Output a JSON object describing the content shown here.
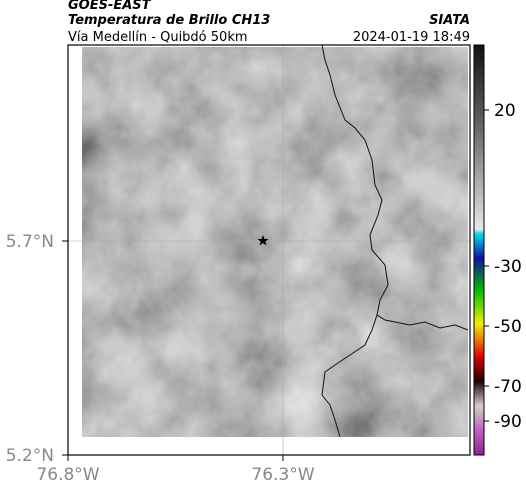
{
  "header": {
    "satellite": "GOES-EAST",
    "product": "Temperatura de Brillo CH13",
    "agency": "SIATA",
    "location": "Vía Medellín - Quibdó 50km",
    "datetime": "2024-01-19 18:49"
  },
  "map": {
    "lat_labels": [
      "5.7°N",
      "5.2°N"
    ],
    "lon_labels": [
      "76.8°W",
      "76.3°W"
    ]
  },
  "colorbar": {
    "labels": [
      20,
      -30,
      -50,
      -70,
      -90
    ]
  }
}
